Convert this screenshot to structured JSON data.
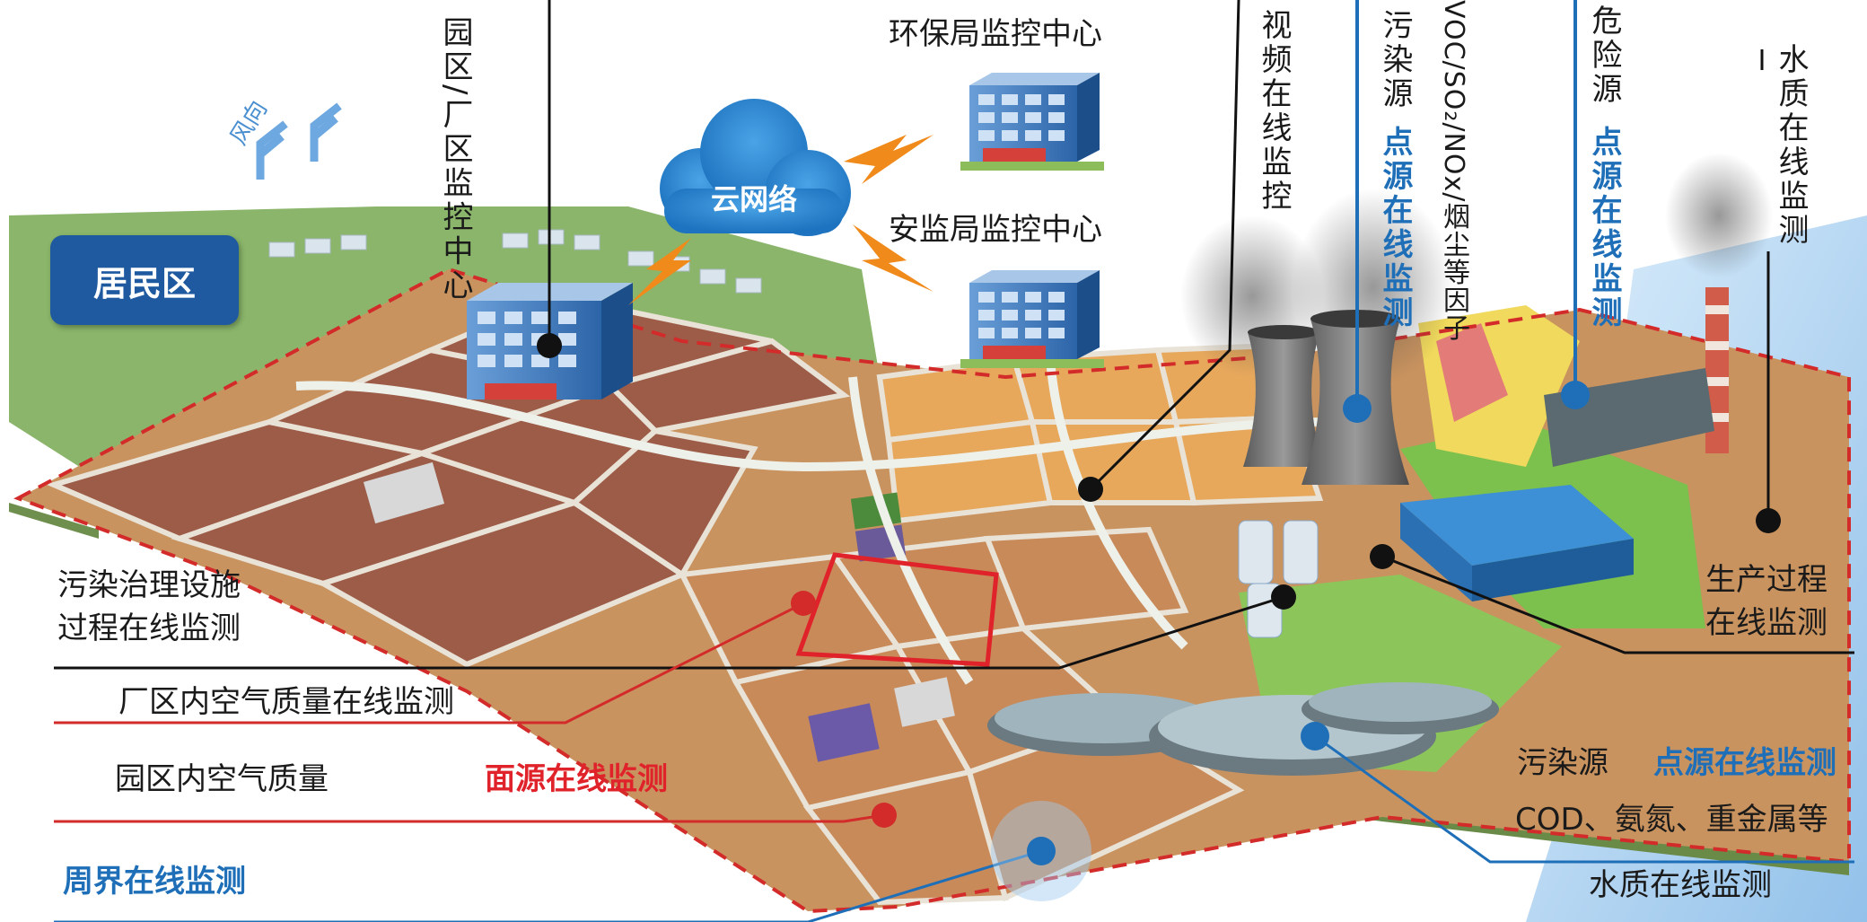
{
  "labels": {
    "residential_area": "居民区",
    "wind_direction": "风向",
    "park_monitor_center": "园区/厂区监控中心",
    "cloud_network": "云网络",
    "epb_monitor_center": "环保局监控中心",
    "safety_monitor_center": "安监局监控中心",
    "video_online_monitoring": "视频在线监控",
    "pollution_source_top": "污染源",
    "point_source_monitoring_top": "点源在线监测",
    "air_factors": "VOC/SO₂/NOx/烟尘等因子",
    "hazard_source": "危险源",
    "point_source_monitoring_hazard": "点源在线监测",
    "water_quality_vertical": "水质在线监测",
    "production_process_line1": "生产过程",
    "production_process_line2": "在线监测",
    "pollution_treatment_line1": "污染治理设施",
    "pollution_treatment_line2": "过程在线监测",
    "factory_air_quality": "厂区内空气质量在线监测",
    "park_air_quality": "园区内空气质量",
    "area_source_monitoring": "面源在线监测",
    "pollution_source_bottom": "污染源",
    "point_source_monitoring_bottom": "点源在线监测",
    "water_factors": "COD、氨氮、重金属等",
    "water_quality_online": "水质在线监测",
    "boundary_monitoring": "周界在线监测"
  },
  "colors": {
    "accent_blue": "#1e6fb8",
    "accent_red": "#e0232a",
    "badge_blue": "#1f5aa0",
    "cloud_blue": "#2e86cf",
    "land_brown": "#c98a5a",
    "land_dark": "#9a5a45",
    "land_orange": "#e6a95c",
    "green_area": "#78b84a",
    "yellow_zone": "#f3dc5a",
    "water": "#9fc9ef"
  },
  "icons": {
    "buildings": "office-building-icon",
    "lightning": "lightning-icon",
    "cloud": "cloud-icon",
    "wind": "wind-arrow-icon",
    "cooling_tower": "cooling-tower-icon",
    "chimney": "chimney-icon",
    "treatment_tank": "sedimentation-tank-icon"
  }
}
